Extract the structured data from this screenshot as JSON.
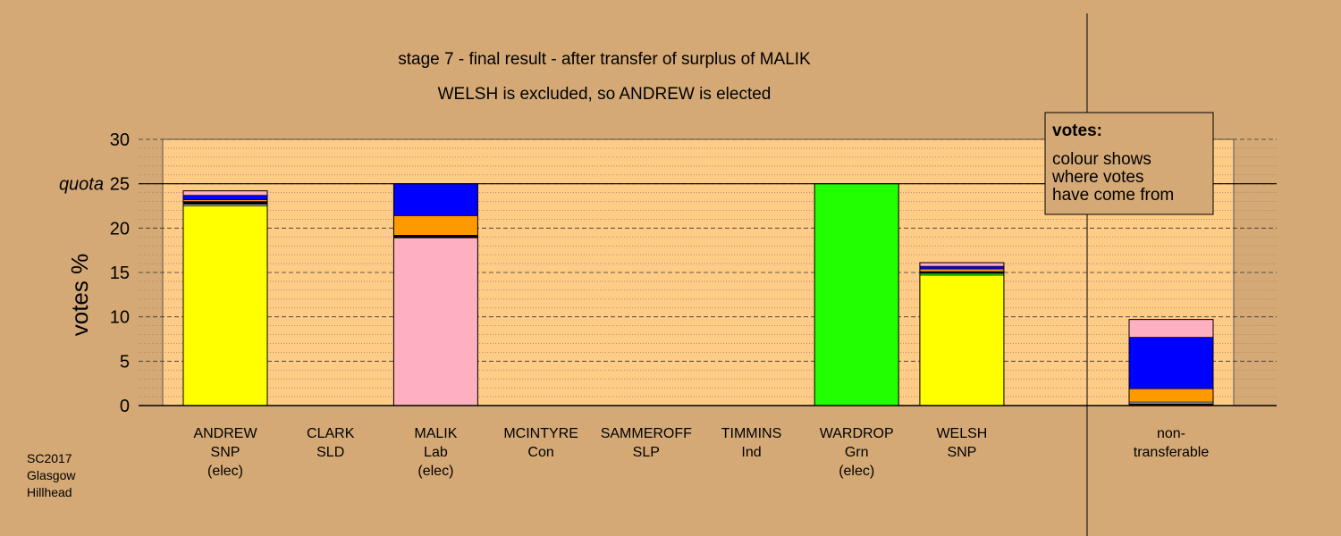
{
  "chart_data": {
    "type": "bar",
    "stacked": true,
    "title": "stage 7 - final result - after transfer of surplus of MALIK",
    "subtitle": "WELSH is excluded, so ANDREW is elected",
    "ylabel": "votes %",
    "ylim": [
      0,
      30
    ],
    "yticks": [
      0,
      5,
      10,
      15,
      20,
      25,
      30
    ],
    "quota": {
      "label": "quota",
      "value": 25
    },
    "grid": true,
    "legend": {
      "placement": "top-right",
      "title": "votes:",
      "lines": [
        "colour shows",
        "where votes",
        "have come from"
      ]
    },
    "colors": {
      "background": "#d4a976",
      "plot_area": "#ffcc88",
      "yellow": "#ffff00",
      "pink": "#ffb0c0",
      "green": "#22ff00",
      "blue": "#0000ff",
      "orange": "#ff9900",
      "black": "#000000",
      "grey": "#bbbbbb",
      "red": "#ff0000"
    },
    "candidates": [
      {
        "name": "ANDREW",
        "party": "SNP",
        "status": "(elec)",
        "segments": [
          {
            "color": "yellow",
            "value": 22.5
          },
          {
            "color": "grey",
            "value": 0.2
          },
          {
            "color": "black",
            "value": 0.3
          },
          {
            "color": "orange",
            "value": 0.2
          },
          {
            "color": "blue",
            "value": 0.5
          },
          {
            "color": "pink",
            "value": 0.5
          }
        ]
      },
      {
        "name": "CLARK",
        "party": "SLD",
        "status": "",
        "segments": []
      },
      {
        "name": "MALIK",
        "party": "Lab",
        "status": "(elec)",
        "segments": [
          {
            "color": "pink",
            "value": 18.9
          },
          {
            "color": "black",
            "value": 0.3
          },
          {
            "color": "orange",
            "value": 2.2
          },
          {
            "color": "blue",
            "value": 3.6
          }
        ]
      },
      {
        "name": "MCINTYRE",
        "party": "Con",
        "status": "",
        "segments": []
      },
      {
        "name": "SAMMEROFF",
        "party": "SLP",
        "status": "",
        "segments": []
      },
      {
        "name": "TIMMINS",
        "party": "Ind",
        "status": "",
        "segments": []
      },
      {
        "name": "WARDROP",
        "party": "Grn",
        "status": "(elec)",
        "segments": [
          {
            "color": "green",
            "value": 25.0
          }
        ]
      },
      {
        "name": "WELSH",
        "party": "SNP",
        "status": "",
        "segments": [
          {
            "color": "yellow",
            "value": 14.7
          },
          {
            "color": "green",
            "value": 0.2
          },
          {
            "color": "black",
            "value": 0.2
          },
          {
            "color": "orange",
            "value": 0.3
          },
          {
            "color": "blue",
            "value": 0.3
          },
          {
            "color": "pink",
            "value": 0.4
          }
        ]
      }
    ],
    "nontransferable": {
      "label_lines": [
        "non-",
        "transferable"
      ],
      "segments": [
        {
          "color": "black",
          "value": 0.2
        },
        {
          "color": "grey",
          "value": 0.2
        },
        {
          "color": "orange",
          "value": 1.5
        },
        {
          "color": "blue",
          "value": 5.8
        },
        {
          "color": "pink",
          "value": 2.0
        }
      ]
    }
  },
  "source": [
    "SC2017",
    "Glasgow",
    "Hillhead"
  ]
}
